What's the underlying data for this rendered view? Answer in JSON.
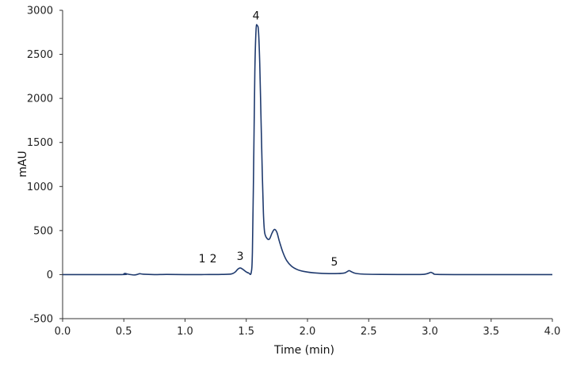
{
  "chart_data": {
    "type": "line",
    "title": "",
    "xlabel": "Time (min)",
    "ylabel": "mAU",
    "xlim": [
      0.0,
      4.0
    ],
    "ylim": [
      -500,
      3000
    ],
    "xticks": [
      0.0,
      0.5,
      1.0,
      1.5,
      2.0,
      2.5,
      3.0,
      3.5,
      4.0
    ],
    "xtick_labels": [
      "0.0",
      "0.5",
      "1.0",
      "1.5",
      "2.0",
      "2.5",
      "3.0",
      "3.5",
      "4.0"
    ],
    "yticks": [
      -500,
      0,
      500,
      1000,
      1500,
      2000,
      2500,
      3000
    ],
    "ytick_labels": [
      "-500",
      "0",
      "500",
      "1000",
      "1500",
      "2000",
      "2500",
      "3000"
    ],
    "grid": false,
    "legend": null,
    "line_color": "#1f3a6e",
    "series": [
      {
        "name": "chromatogram",
        "x": [
          0.0,
          0.48,
          0.5,
          0.51,
          0.53,
          0.58,
          0.61,
          0.63,
          0.66,
          0.75,
          0.85,
          1.0,
          1.1,
          1.2,
          1.3,
          1.38,
          1.41,
          1.43,
          1.45,
          1.47,
          1.5,
          1.52,
          1.54,
          1.55,
          1.56,
          1.57,
          1.58,
          1.59,
          1.6,
          1.61,
          1.62,
          1.63,
          1.64,
          1.65,
          1.67,
          1.69,
          1.71,
          1.73,
          1.75,
          1.77,
          1.8,
          1.83,
          1.87,
          1.92,
          1.97,
          2.05,
          2.15,
          2.25,
          2.3,
          2.32,
          2.34,
          2.36,
          2.39,
          2.45,
          2.6,
          2.9,
          2.97,
          3.0,
          3.01,
          3.03,
          3.06,
          3.3,
          3.6,
          4.0
        ],
        "y": [
          0,
          0,
          8,
          14,
          6,
          -4,
          2,
          10,
          4,
          0,
          2,
          0,
          0,
          1,
          2,
          8,
          30,
          60,
          75,
          62,
          30,
          18,
          20,
          250,
          1200,
          2300,
          2780,
          2826,
          2760,
          2400,
          1800,
          1200,
          700,
          480,
          410,
          405,
          470,
          513,
          480,
          380,
          250,
          160,
          95,
          55,
          36,
          20,
          12,
          12,
          18,
          30,
          45,
          32,
          15,
          6,
          2,
          1,
          8,
          22,
          25,
          12,
          2,
          0,
          0,
          0
        ]
      }
    ],
    "annotations": [
      {
        "text": "1",
        "x": 1.14,
        "y": 185
      },
      {
        "text": "2",
        "x": 1.23,
        "y": 185
      },
      {
        "text": "3",
        "x": 1.45,
        "y": 210
      },
      {
        "text": "4",
        "x": 1.58,
        "y": 2940
      },
      {
        "text": "5",
        "x": 2.22,
        "y": 150
      }
    ]
  }
}
